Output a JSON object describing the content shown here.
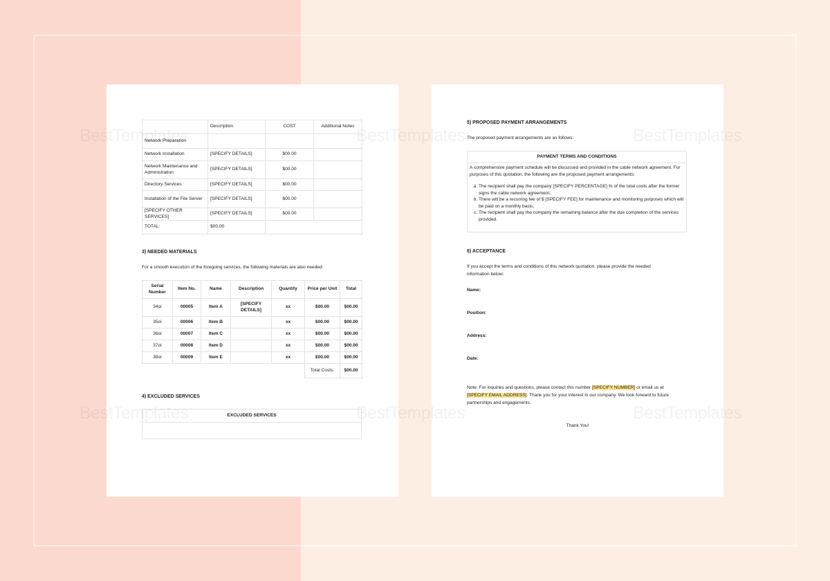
{
  "watermark": "BestTemplates",
  "colors": {
    "bg_left": "#fcd9cf",
    "bg_right": "#fdeee3",
    "highlight": "#ffe38a"
  },
  "services_table": {
    "headers": [
      "",
      "Description",
      "COST",
      "Additional Notes"
    ],
    "rows": [
      [
        "Network Preparation",
        "",
        "",
        ""
      ],
      [
        "Network Installation",
        "[SPECIFY DETAILS]",
        "$00.00",
        ""
      ],
      [
        "Network Maintenance and Administration",
        "[SPECIFY DETAILS]",
        "$00.00",
        ""
      ],
      [
        "Directory Services",
        "[SPECIFY DETAILS]",
        "$00.00",
        ""
      ],
      [
        "Installation of the File Server",
        "[SPECIFY DETAILS]",
        "$00.00",
        ""
      ],
      [
        "[SPECIFY OTHER SERVICES]",
        "[SPECIFY DETAILS]",
        "$00.00",
        ""
      ]
    ],
    "total_label": "TOTAL:",
    "total_value": "$00.00"
  },
  "materials": {
    "heading": "3) NEEDED MATERIALS",
    "intro": "For a smooth execution of the foregoing services, the following materials are also needed:",
    "headers": [
      "Serial Number",
      "Item No.",
      "Name",
      "Description",
      "Quantity",
      "Price per Unit",
      "Total"
    ],
    "rows": [
      [
        "34oi",
        "00005",
        "Item A",
        "[SPECIFY DETAILS]",
        "xx",
        "$00.00",
        "$00.00"
      ],
      [
        "35oi",
        "00006",
        "Item B",
        "",
        "xx",
        "$00.00",
        "$00.00"
      ],
      [
        "36oi",
        "00007",
        "Item C",
        "",
        "xx",
        "$00.00",
        "$00.00"
      ],
      [
        "37oi",
        "00008",
        "Item D",
        "",
        "xx",
        "$00.00",
        "$00.00"
      ],
      [
        "38oi",
        "00009",
        "Item E",
        "",
        "xx",
        "$00.00",
        "$00.00"
      ]
    ],
    "total_label": "Total Costs:",
    "total_value": "$00.00"
  },
  "excluded": {
    "heading": "4) EXCLUDED SERVICES",
    "table_header": "EXCLUDED SERVICES"
  },
  "payment": {
    "heading": "5) PROPOSED PAYMENT ARRANGEMENTS",
    "intro": "The proposed payment arrangements are as follows:",
    "box_title": "PAYMENT TERMS AND CONDITIONS",
    "box_text": "A comprehensive payment schedule will be discussed and provided in the cable network agreement. For purposes of this quotation, the following are the proposed payment arrangements:",
    "items": [
      "The recipient shall pay the company [SPECIFY PERCENTAGE] % of the total costs after the former signs the cable network agreement;",
      "There will be a recurring fee of $ [SPECIFY FEE] for maintenance and monitoring purposes which will be paid on a monthly basis;",
      "The recipient shall pay the company the remaining balance after the due completion of the services provided."
    ]
  },
  "acceptance": {
    "heading": "6) ACCEPTANCE",
    "intro": "If you accept the terms and conditions of this network quotation, please provide the needed information below:",
    "fields": [
      "Name:",
      "Position:",
      "Address:",
      "Date:"
    ],
    "note_1": "Note: For inquiries and questions, please contact this number ",
    "note_number": "[SPECIFY NUMBER]",
    "note_2": " or email us at ",
    "note_email": "[SPECIFY EMAIL ADDRESS]",
    "note_3": ". Thank you for your interest in our company. We look forward to future partnerships and engagements.",
    "thanks": "Thank You!"
  }
}
